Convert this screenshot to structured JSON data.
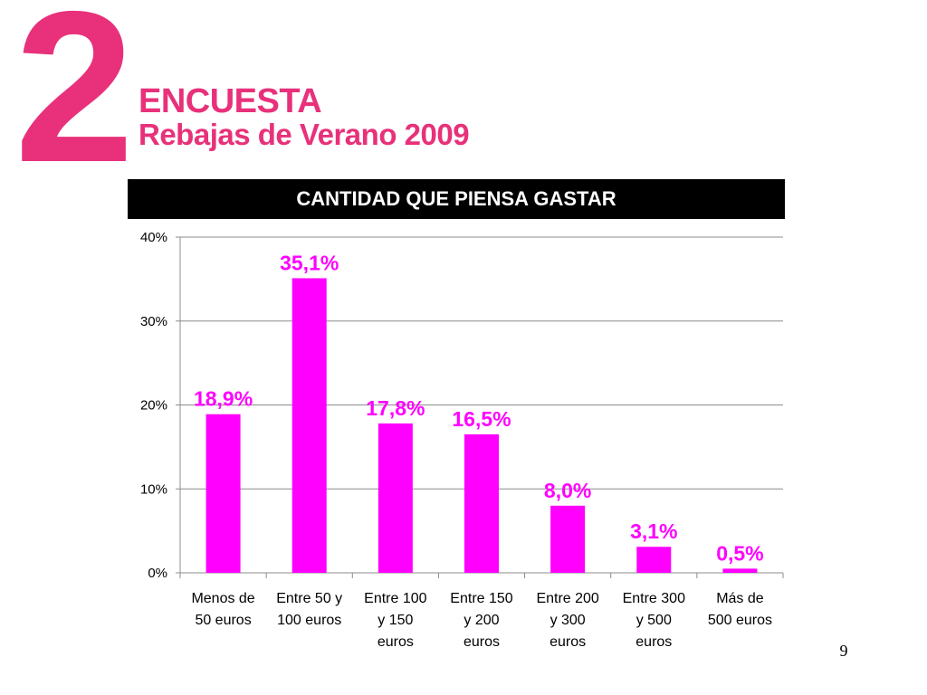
{
  "slide": {
    "big_number": "2",
    "title_line_1": "ENCUESTA",
    "title_line_2": "Rebajas de Verano 2009",
    "page_number": "9",
    "accent_color": "#e8317a",
    "bar_color": "#ff00ff",
    "label_color": "#ff00ff"
  },
  "chart_data": {
    "type": "bar",
    "title": "CANTIDAD QUE PIENSA GASTAR",
    "xlabel": "",
    "ylabel": "",
    "categories": [
      [
        "Menos de",
        "50 euros"
      ],
      [
        "Entre 50 y",
        "100 euros"
      ],
      [
        "Entre 100",
        "y 150",
        "euros"
      ],
      [
        "Entre 150",
        "y 200",
        "euros"
      ],
      [
        "Entre 200",
        "y 300",
        "euros"
      ],
      [
        "Entre 300",
        "y 500",
        "euros"
      ],
      [
        "Más de",
        "500 euros"
      ]
    ],
    "values": [
      18.9,
      35.1,
      17.8,
      16.5,
      8.0,
      3.1,
      0.5
    ],
    "value_labels": [
      "18,9%",
      "35,1%",
      "17,8%",
      "16,5%",
      "8,0%",
      "3,1%",
      "0,5%"
    ],
    "ylim": [
      0,
      40
    ],
    "yticks": [
      0,
      10,
      20,
      30,
      40
    ],
    "ytick_labels": [
      "0%",
      "10%",
      "20%",
      "30%",
      "40%"
    ],
    "grid": true,
    "legend": "none"
  }
}
